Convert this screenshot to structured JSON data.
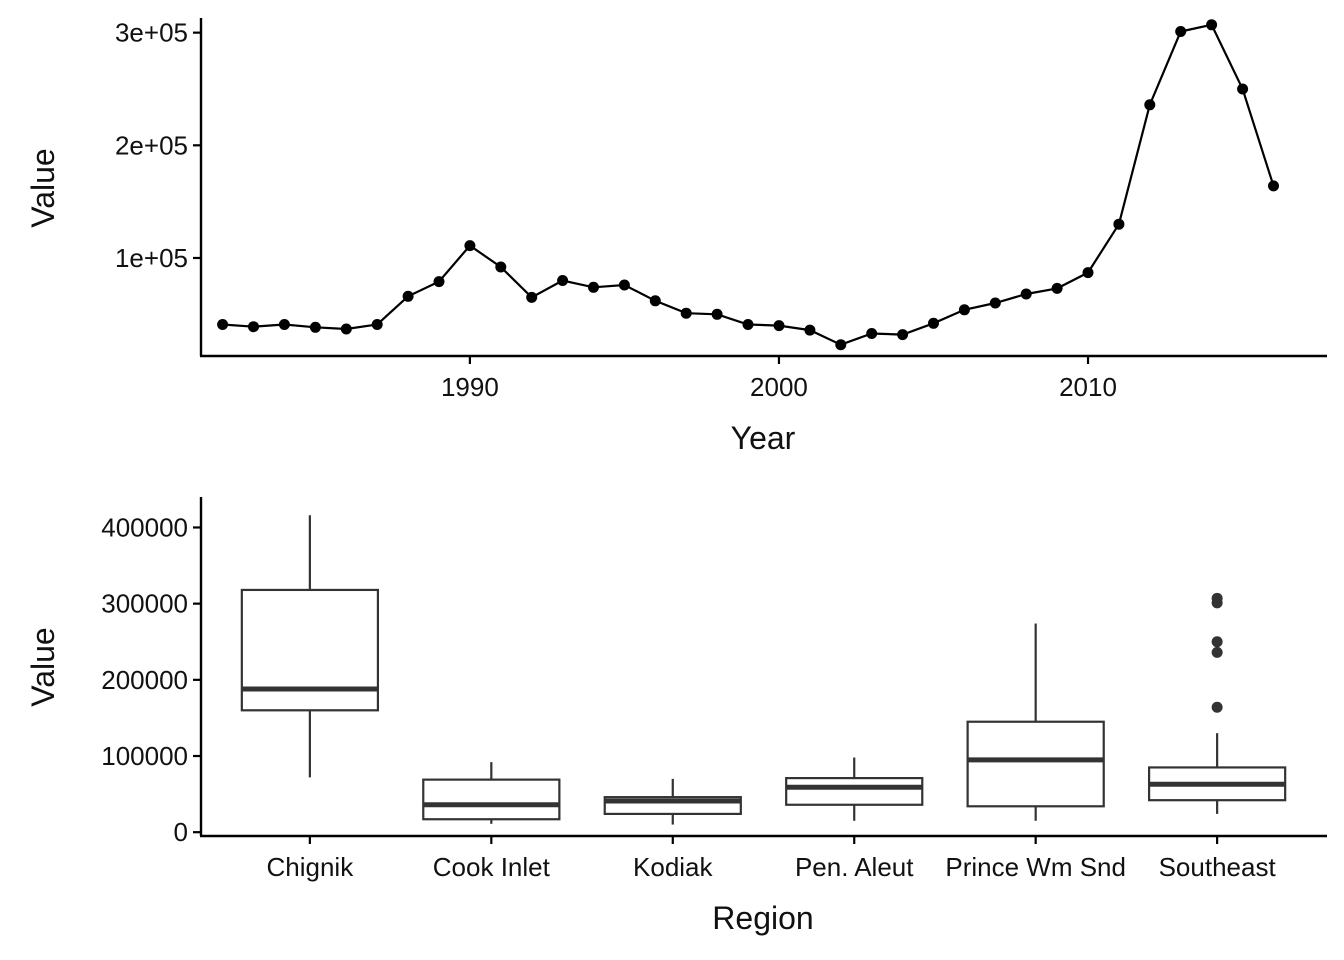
{
  "chart_data": [
    {
      "type": "line",
      "xlabel": "Year",
      "ylabel": "Value",
      "xlim": [
        1981.3,
        2017.7
      ],
      "ylim": [
        13000,
        313000
      ],
      "x_ticks": [
        1990,
        2000,
        2010
      ],
      "y_ticks": [
        100000,
        200000,
        300000
      ],
      "y_tick_labels": [
        "1e+05",
        "2e+05",
        "3e+05"
      ],
      "grid": false,
      "series": [
        {
          "x": [
            1982,
            1983,
            1984,
            1985,
            1986,
            1987,
            1988,
            1989,
            1990,
            1991,
            1992,
            1993,
            1994,
            1995,
            1996,
            1997,
            1998,
            1999,
            2000,
            2001,
            2002,
            2003,
            2004,
            2005,
            2006,
            2007,
            2008,
            2009,
            2010,
            2011,
            2012,
            2013,
            2014,
            2015,
            2016
          ],
          "y": [
            41000,
            39000,
            41000,
            38500,
            37000,
            41000,
            66000,
            79000,
            111000,
            92000,
            65000,
            80000,
            74000,
            76000,
            62000,
            51000,
            50000,
            41000,
            40000,
            36000,
            23000,
            33000,
            32000,
            42000,
            54000,
            60000,
            68000,
            73000,
            87000,
            130000,
            236000,
            301000,
            307000,
            250000,
            164000
          ]
        }
      ]
    },
    {
      "type": "box",
      "xlabel": "Region",
      "ylabel": "Value",
      "ylim": [
        -5000,
        440000
      ],
      "y_ticks": [
        0,
        100000,
        200000,
        300000,
        400000
      ],
      "y_tick_labels": [
        "0",
        "100000",
        "200000",
        "300000",
        "400000"
      ],
      "grid": false,
      "categories": [
        "Chignik",
        "Cook Inlet",
        "Kodiak",
        "Pen. Aleut",
        "Prince Wm Snd",
        "Southeast"
      ],
      "boxes": [
        {
          "min": 72000,
          "q1": 160000,
          "median": 188000,
          "q3": 318000,
          "max": 416000,
          "outliers": []
        },
        {
          "min": 11000,
          "q1": 17000,
          "median": 36000,
          "q3": 69000,
          "max": 92000,
          "outliers": []
        },
        {
          "min": 10000,
          "q1": 24000,
          "median": 41000,
          "q3": 46000,
          "max": 70000,
          "outliers": []
        },
        {
          "min": 15000,
          "q1": 36000,
          "median": 59000,
          "q3": 71000,
          "max": 98000,
          "outliers": []
        },
        {
          "min": 15000,
          "q1": 34000,
          "median": 95000,
          "q3": 145000,
          "max": 274000,
          "outliers": []
        },
        {
          "min": 24000,
          "q1": 42000,
          "median": 63000,
          "q3": 85000,
          "max": 130000,
          "outliers": [
            164000,
            236000,
            250000,
            301000,
            307000
          ]
        }
      ]
    }
  ]
}
